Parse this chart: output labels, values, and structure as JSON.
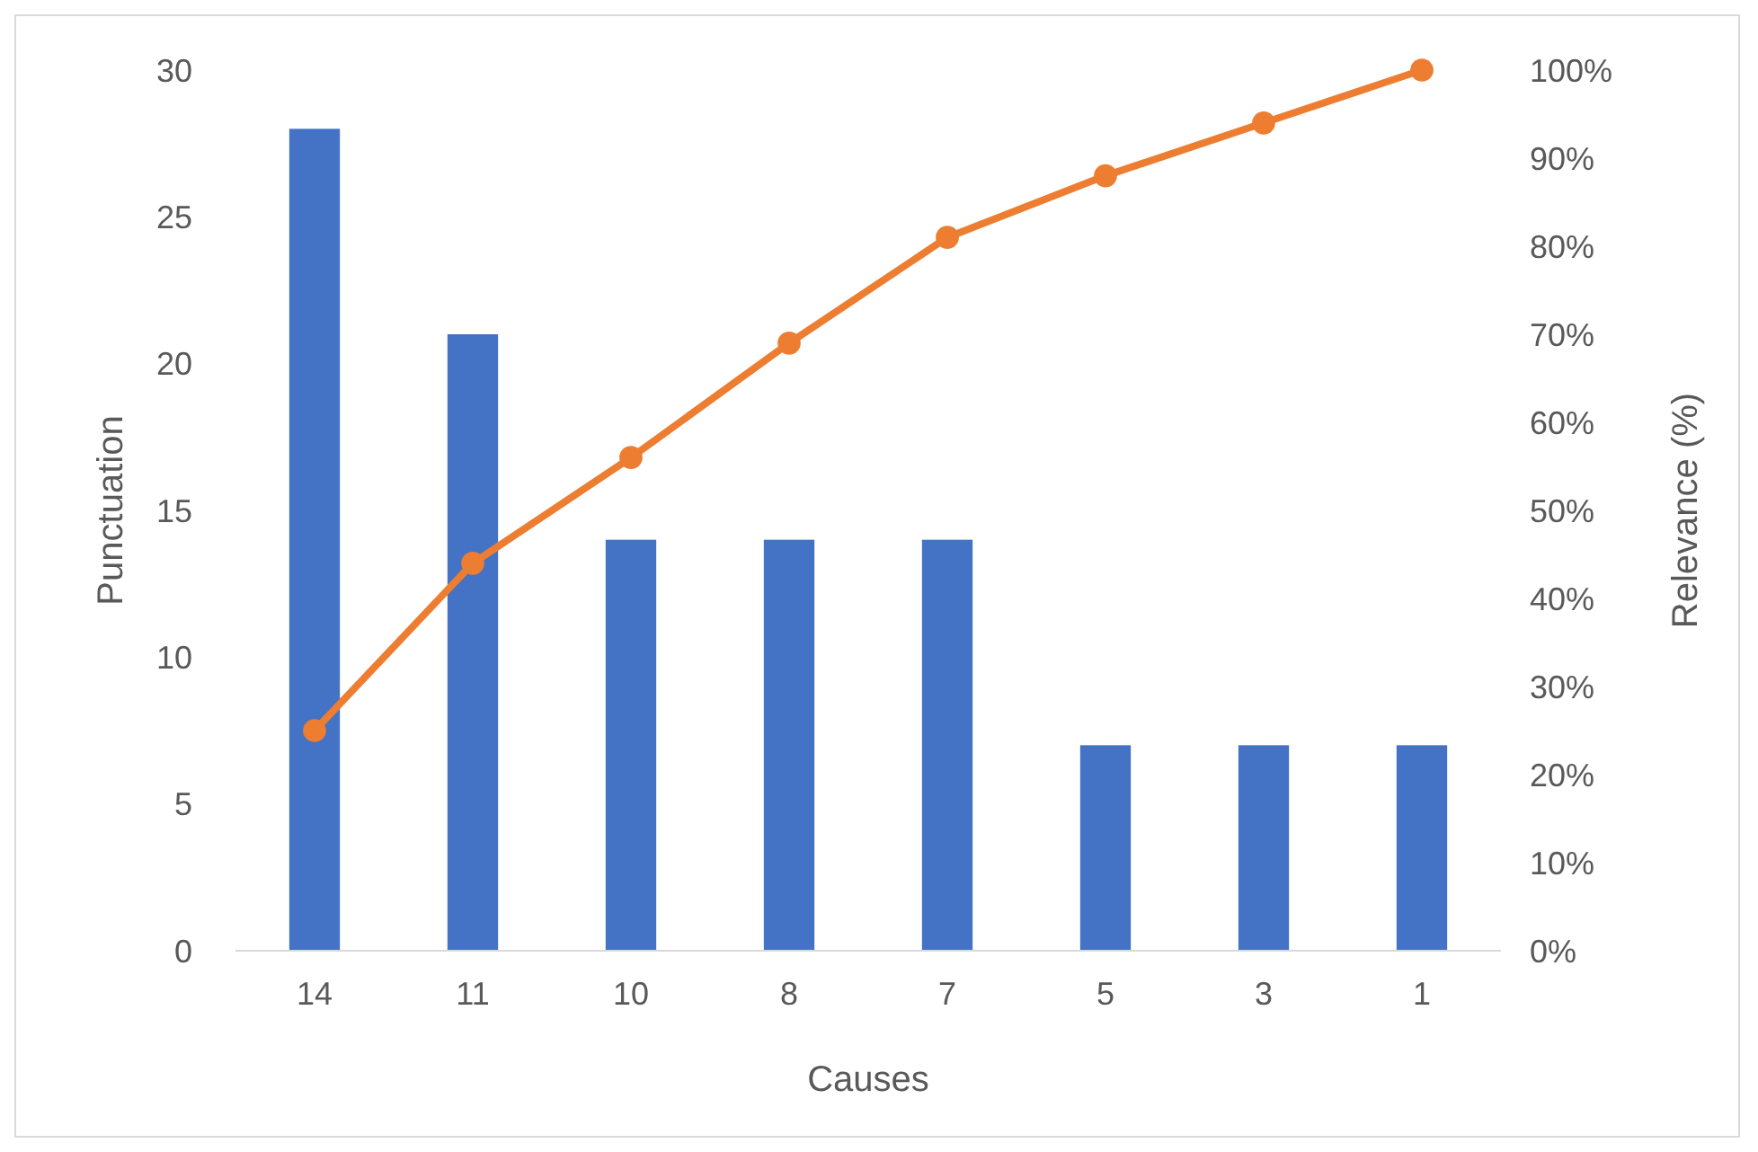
{
  "chart_data": {
    "type": "bar",
    "xlabel": "Causes",
    "ylabel": "Punctuation",
    "y2label": "Relevance (%)",
    "categories": [
      "14",
      "11",
      "10",
      "8",
      "7",
      "5",
      "3",
      "1"
    ],
    "series": [
      {
        "color": "#4472c4",
        "values": [
          28,
          21,
          14,
          14,
          14,
          7,
          7,
          7
        ]
      },
      {
        "type": "line",
        "axis": "y2",
        "color": "#ed7d31",
        "values": [
          25,
          44,
          56,
          69,
          81,
          88,
          94,
          100
        ]
      }
    ],
    "ylim": [
      0,
      30
    ],
    "yticks": [
      0,
      5,
      10,
      15,
      20,
      25,
      30
    ],
    "y2lim": [
      0,
      100
    ],
    "y2ticks": [
      {
        "value": 0,
        "label": "0%"
      },
      {
        "value": 10,
        "label": "10%"
      },
      {
        "value": 20,
        "label": "20%"
      },
      {
        "value": 30,
        "label": "30%"
      },
      {
        "value": 40,
        "label": "40%"
      },
      {
        "value": 50,
        "label": "50%"
      },
      {
        "value": 60,
        "label": "60%"
      },
      {
        "value": 70,
        "label": "70%"
      },
      {
        "value": 80,
        "label": "80%"
      },
      {
        "value": 90,
        "label": "90%"
      },
      {
        "value": 100,
        "label": "100%"
      }
    ],
    "marker": "circle",
    "grid": false
  }
}
